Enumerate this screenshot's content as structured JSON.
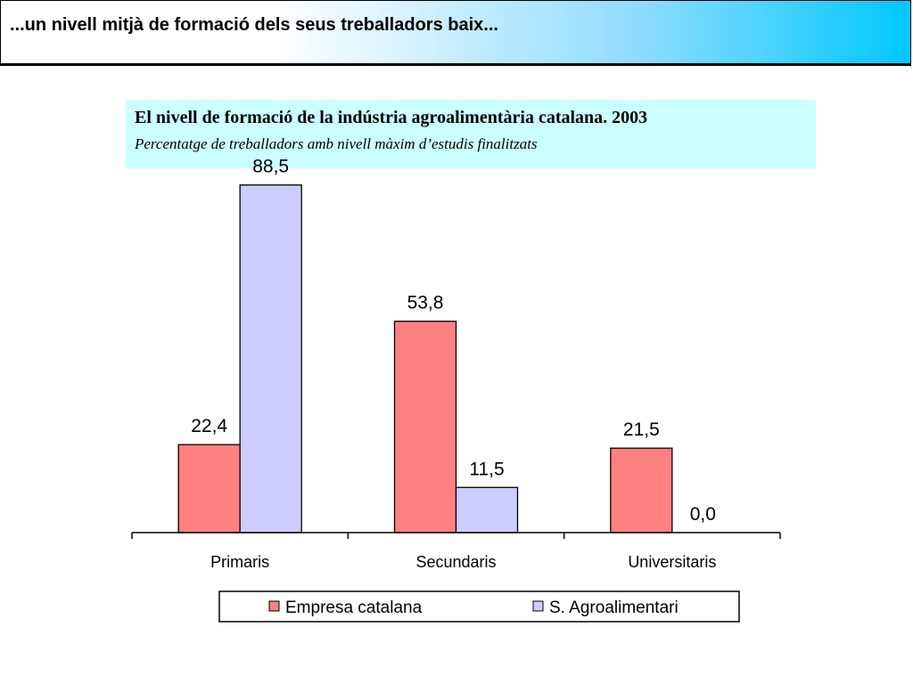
{
  "slide": {
    "title": "...un nivell mitjà de formació dels seus treballadors baix..."
  },
  "chart_data": {
    "type": "bar",
    "title": "El nivell de  formació de la indústria agroalimentària catalana. 2003",
    "subtitle": "Percentatge de treballadors amb nivell màxim d’estudis finalitzats",
    "categories": [
      "Primaris",
      "Secundaris",
      "Universitaris"
    ],
    "series": [
      {
        "name": "Empresa catalana",
        "color": "#ff8080",
        "values": [
          22.4,
          53.8,
          21.5
        ],
        "labels": [
          "22,4",
          "53,8",
          "21,5"
        ]
      },
      {
        "name": "S. Agroalimentari",
        "color": "#ccccff",
        "values": [
          88.5,
          11.5,
          0.0
        ],
        "labels": [
          "88,5",
          "11,5",
          "0,0"
        ]
      }
    ],
    "ylim": [
      0,
      100
    ],
    "xlabel": "",
    "ylabel": "",
    "grid": false,
    "legend_position": "bottom"
  }
}
